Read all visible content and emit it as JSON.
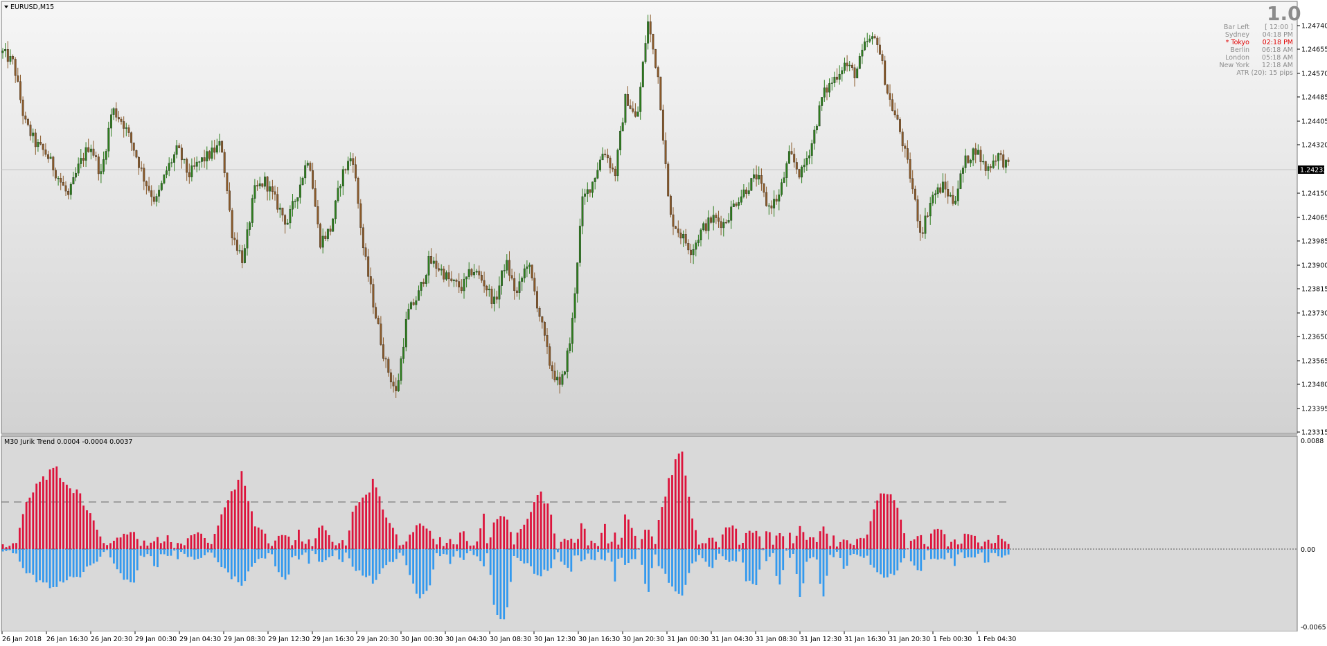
{
  "window": {
    "symbol_title": "EURUSD,M15"
  },
  "info_box": {
    "big_value": "1.0",
    "rows": [
      {
        "label": "Bar Left",
        "value": "[ 12:00 ]",
        "highlight": false
      },
      {
        "label": "Sydney",
        "value": "04:18 PM",
        "highlight": false
      },
      {
        "label": "* Tokyo",
        "value": "02:18 PM",
        "highlight": true
      },
      {
        "label": "Berlin",
        "value": "06:18 AM",
        "highlight": false
      },
      {
        "label": "London",
        "value": "05:18 AM",
        "highlight": false
      },
      {
        "label": "New York",
        "value": "12:18 AM",
        "highlight": false
      }
    ],
    "atr": "ATR (20): 15 pips"
  },
  "price_axis": {
    "ticks": [
      "1.24740",
      "1.24655",
      "1.24570",
      "1.24485",
      "1.24405",
      "1.24320",
      "1.24150",
      "1.24065",
      "1.23985",
      "1.23900",
      "1.23815",
      "1.23730",
      "1.23650",
      "1.23565",
      "1.23480",
      "1.23395",
      "1.23315"
    ],
    "current_price": "1.24233"
  },
  "indicator": {
    "label": "M30   Jurik Trend  0.0004 -0.0004 0.0037",
    "axis_top": "0.0088",
    "axis_zero": "0.00",
    "axis_bottom": "-0.0065"
  },
  "time_axis": {
    "labels": [
      "26 Jan 2018",
      "26 Jan 16:30",
      "26 Jan 20:30",
      "29 Jan 00:30",
      "29 Jan 04:30",
      "29 Jan 08:30",
      "29 Jan 12:30",
      "29 Jan 16:30",
      "29 Jan 20:30",
      "30 Jan 00:30",
      "30 Jan 04:30",
      "30 Jan 08:30",
      "30 Jan 12:30",
      "30 Jan 16:30",
      "30 Jan 20:30",
      "31 Jan 00:30",
      "31 Jan 04:30",
      "31 Jan 08:30",
      "31 Jan 12:30",
      "31 Jan 16:30",
      "31 Jan 20:30",
      "1 Feb 00:30",
      "1 Feb 04:30"
    ]
  },
  "colors": {
    "bull_candle": "#2e7d1e",
    "bear_candle": "#8a5a2a",
    "hist_red": "#dc143c",
    "hist_blue": "#3399ee",
    "background_top": "#f5f5f5",
    "background_bottom": "#d4d4d4"
  },
  "chart_data": {
    "type": "candlestick",
    "title": "EURUSD,M15",
    "ylim": [
      1.2328,
      1.2478
    ],
    "x_labels": [
      "26 Jan 2018",
      "26 Jan 16:30",
      "26 Jan 20:30",
      "29 Jan 00:30",
      "29 Jan 04:30",
      "29 Jan 08:30",
      "29 Jan 12:30",
      "29 Jan 16:30",
      "29 Jan 20:30",
      "30 Jan 00:30",
      "30 Jan 04:30",
      "30 Jan 08:30",
      "30 Jan 12:30",
      "30 Jan 16:30",
      "30 Jan 20:30",
      "31 Jan 00:30",
      "31 Jan 04:30",
      "31 Jan 08:30",
      "31 Jan 12:30",
      "31 Jan 16:30",
      "31 Jan 20:30",
      "1 Feb 00:30",
      "1 Feb 04:30"
    ],
    "close_path": [
      1.2466,
      1.2462,
      1.244,
      1.2432,
      1.2428,
      1.242,
      1.2412,
      1.2424,
      1.2432,
      1.242,
      1.2445,
      1.244,
      1.243,
      1.2418,
      1.241,
      1.2422,
      1.243,
      1.242,
      1.2425,
      1.2428,
      1.2432,
      1.2398,
      1.2388,
      1.2414,
      1.2418,
      1.241,
      1.2402,
      1.2414,
      1.2428,
      1.2395,
      1.24,
      1.242,
      1.2428,
      1.2392,
      1.237,
      1.235,
      1.2338,
      1.2368,
      1.2375,
      1.2388,
      1.2385,
      1.238,
      1.2378,
      1.2385,
      1.238,
      1.2372,
      1.2388,
      1.2375,
      1.2388,
      1.237,
      1.235,
      1.234,
      1.236,
      1.241,
      1.2418,
      1.243,
      1.242,
      1.245,
      1.244,
      1.2478,
      1.2456,
      1.2405,
      1.2398,
      1.2392,
      1.24,
      1.2404,
      1.2402,
      1.241,
      1.2415,
      1.242,
      1.2408,
      1.2412,
      1.2428,
      1.242,
      1.2432,
      1.245,
      1.2456,
      1.2462,
      1.2458,
      1.247,
      1.2471,
      1.245,
      1.2438,
      1.242,
      1.2398,
      1.2412,
      1.2416,
      1.241,
      1.2425,
      1.243,
      1.2422,
      1.2428,
      1.2423
    ],
    "histogram": [
      0.0004,
      -0.0004,
      0.0037,
      0.0052,
      0.0062,
      0.0068,
      0.0056,
      0.0046,
      0.003,
      0.001,
      -0.001,
      -0.0026,
      -0.003,
      0.001,
      -0.002,
      0.0014,
      -0.0008,
      0.001,
      0.0016,
      0.0002,
      0.003,
      0.005,
      0.0064,
      0.002,
      0.0014,
      -0.0016,
      -0.0028,
      0.0018,
      -0.0012,
      0.0022,
      0.001,
      -0.0014,
      0.003,
      0.0044,
      0.0058,
      0.003,
      0.0012,
      -0.0016,
      -0.004,
      -0.0034,
      0.001,
      -0.0014,
      0.002,
      -0.0008,
      0.003,
      -0.0052,
      -0.0064,
      0.0012,
      0.0026,
      0.005,
      0.0034,
      -0.001,
      -0.002,
      0.0026,
      -0.0016,
      0.0024,
      -0.0026,
      0.0032,
      0.0008,
      -0.004,
      0.0024,
      0.006,
      0.0088,
      0.003,
      -0.0008,
      -0.0018,
      0.0018,
      0.0022,
      -0.0026,
      -0.003,
      0.0024,
      -0.0036,
      0.0014,
      -0.0046,
      0.002,
      -0.0042,
      0.0012,
      -0.002,
      0.0008,
      0.001,
      0.0044,
      0.005,
      0.0032,
      -0.001,
      -0.002,
      0.0016,
      0.0018,
      -0.0016,
      0.0014,
      0.0012,
      -0.0016,
      0.0012,
      0.0004
    ]
  }
}
